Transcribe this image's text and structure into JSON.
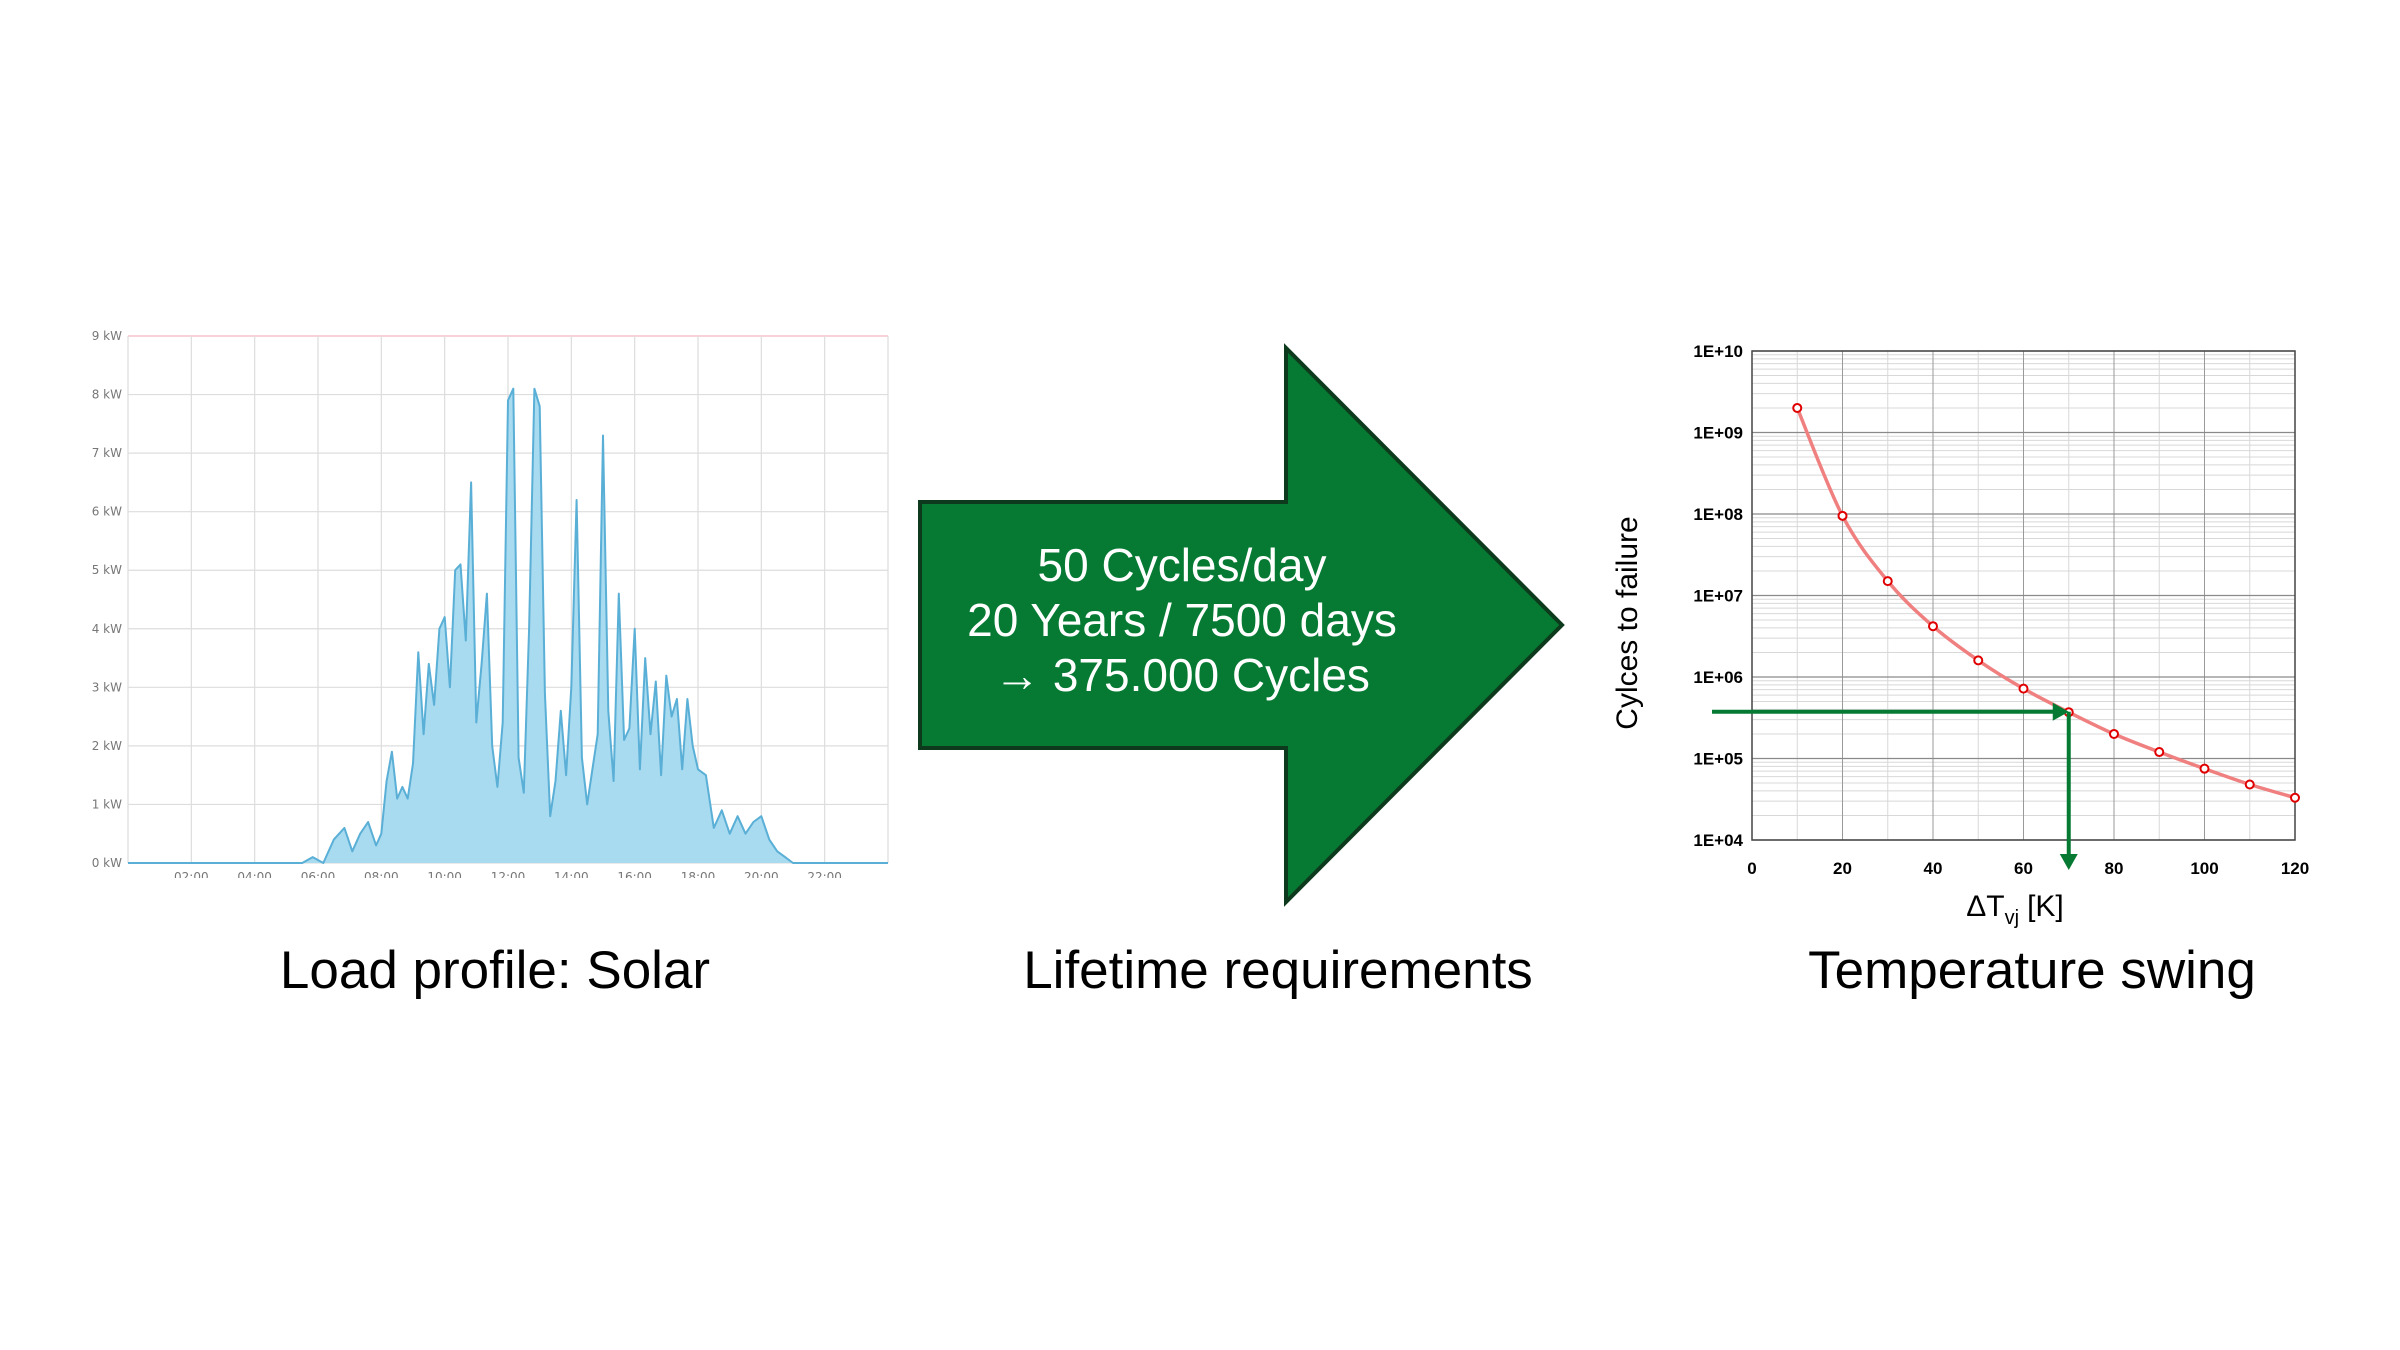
{
  "captions": {
    "left": "Load profile: Solar",
    "middle": "Lifetime requirements",
    "right": "Temperature swing"
  },
  "arrow": {
    "color": "#067A33",
    "lines": [
      "50 Cycles/day",
      "20 Years / 7500 days",
      "→ 375.000 Cycles"
    ]
  },
  "chart_data": [
    {
      "type": "area",
      "title": "",
      "xlabel": "",
      "ylabel": "",
      "x_range_hours": [
        0,
        24
      ],
      "x_ticks": [
        "02:00",
        "04:00",
        "06:00",
        "08:00",
        "10:00",
        "12:00",
        "14:00",
        "16:00",
        "18:00",
        "20:00",
        "22:00"
      ],
      "y_ticks": [
        "0 kW",
        "1 kW",
        "2 kW",
        "3 kW",
        "4 kW",
        "5 kW",
        "6 kW",
        "7 kW",
        "8 kW",
        "9 kW"
      ],
      "ylim": [
        0,
        9
      ],
      "grid": true,
      "color": "#5AAFD6",
      "fill_color": "#A8DAF0",
      "x": [
        "05:30",
        "05:50",
        "06:10",
        "06:30",
        "06:50",
        "07:05",
        "07:20",
        "07:35",
        "07:50",
        "08:00",
        "08:10",
        "08:20",
        "08:30",
        "08:40",
        "08:50",
        "09:00",
        "09:10",
        "09:20",
        "09:30",
        "09:40",
        "09:50",
        "10:00",
        "10:10",
        "10:20",
        "10:30",
        "10:40",
        "10:50",
        "11:00",
        "11:10",
        "11:20",
        "11:30",
        "11:40",
        "11:50",
        "12:00",
        "12:10",
        "12:20",
        "12:30",
        "12:40",
        "12:50",
        "13:00",
        "13:10",
        "13:20",
        "13:30",
        "13:40",
        "13:50",
        "14:00",
        "14:10",
        "14:20",
        "14:30",
        "14:40",
        "14:50",
        "15:00",
        "15:10",
        "15:20",
        "15:30",
        "15:40",
        "15:50",
        "16:00",
        "16:10",
        "16:20",
        "16:30",
        "16:40",
        "16:50",
        "17:00",
        "17:10",
        "17:20",
        "17:30",
        "17:40",
        "17:50",
        "18:00",
        "18:15",
        "18:30",
        "18:45",
        "19:00",
        "19:15",
        "19:30",
        "19:45",
        "20:00",
        "20:15",
        "20:30",
        "20:45",
        "21:00"
      ],
      "values": [
        0,
        0.1,
        0,
        0.4,
        0.6,
        0.2,
        0.5,
        0.7,
        0.3,
        0.5,
        1.4,
        1.9,
        1.1,
        1.3,
        1.1,
        1.7,
        3.6,
        2.2,
        3.4,
        2.7,
        4.0,
        4.2,
        3.0,
        5.0,
        5.1,
        3.8,
        6.5,
        2.4,
        3.4,
        4.6,
        2.0,
        1.3,
        2.4,
        7.9,
        8.1,
        1.8,
        1.2,
        4.0,
        8.1,
        7.8,
        2.9,
        0.8,
        1.4,
        2.6,
        1.5,
        3.0,
        6.2,
        1.8,
        1.0,
        1.6,
        2.2,
        7.3,
        2.6,
        1.4,
        4.6,
        2.1,
        2.3,
        4.0,
        1.6,
        3.5,
        2.2,
        3.1,
        1.5,
        3.2,
        2.5,
        2.8,
        1.6,
        2.8,
        2.0,
        1.6,
        1.5,
        0.6,
        0.9,
        0.5,
        0.8,
        0.5,
        0.7,
        0.8,
        0.4,
        0.2,
        0.1,
        0
      ]
    },
    {
      "type": "line",
      "title": "",
      "xlabel": "ΔT",
      "xlabel_subscript": "vj",
      "xlabel_unit": "[K]",
      "ylabel": "Cylces to failure",
      "x_ticks": [
        "0",
        "20",
        "40",
        "60",
        "80",
        "100",
        "120"
      ],
      "xlim": [
        0,
        120
      ],
      "y_ticks": [
        "1E+04",
        "1E+05",
        "1E+06",
        "1E+07",
        "1E+08",
        "1E+09",
        "1E+10"
      ],
      "ylim": [
        10000,
        10000000000
      ],
      "yscale": "log",
      "grid": true,
      "series_color": "#F08080",
      "marker_color": "#E00000",
      "x": [
        10,
        20,
        30,
        40,
        50,
        60,
        70,
        80,
        90,
        100,
        110,
        120
      ],
      "values": [
        2000000000,
        95000000,
        15000000,
        4200000,
        1600000,
        720000,
        370000,
        200000,
        120000,
        75000,
        48000,
        33000
      ],
      "annotation": {
        "color": "#067A33",
        "dT": 70,
        "cycles": 375000
      }
    }
  ]
}
